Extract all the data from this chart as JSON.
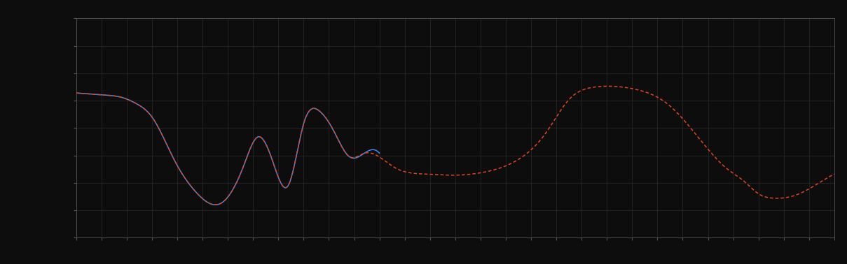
{
  "background_color": "#0d0d0d",
  "plot_background_color": "#0d0d0d",
  "grid_color": "#2a2a2a",
  "line1_color": "#4488ee",
  "line2_color": "#dd4422",
  "line_width": 1.1,
  "figsize": [
    12.09,
    3.78
  ],
  "dpi": 100,
  "xlim": [
    0,
    100
  ],
  "ylim": [
    0,
    10
  ],
  "n_grid_x": 30,
  "n_grid_y": 8,
  "blue_x": [
    0,
    2,
    4,
    6,
    8,
    10,
    13,
    16,
    19,
    22,
    24,
    26,
    28,
    30,
    32,
    34,
    36,
    38,
    40
  ],
  "blue_y": [
    6.6,
    6.55,
    6.5,
    6.4,
    6.1,
    5.5,
    3.5,
    2.0,
    1.55,
    3.2,
    4.6,
    3.4,
    2.4,
    5.2,
    5.8,
    4.85,
    3.7,
    3.85,
    3.85
  ],
  "red_x": [
    0,
    2,
    4,
    6,
    8,
    10,
    13,
    16,
    19,
    22,
    24,
    26,
    28,
    30,
    32,
    34,
    36,
    38,
    42,
    46,
    50,
    54,
    58,
    62,
    65,
    68,
    71,
    74,
    78,
    82,
    86,
    88,
    90,
    92,
    95,
    98,
    100
  ],
  "red_y": [
    6.6,
    6.55,
    6.5,
    6.4,
    6.1,
    5.5,
    3.5,
    2.0,
    1.55,
    3.2,
    4.6,
    3.4,
    2.4,
    5.2,
    5.8,
    4.85,
    3.7,
    3.85,
    3.2,
    2.9,
    2.85,
    3.0,
    3.5,
    4.8,
    6.3,
    6.85,
    6.9,
    6.75,
    6.1,
    4.6,
    3.1,
    2.6,
    2.0,
    1.8,
    1.95,
    2.5,
    2.9
  ],
  "spine_color": "#555555",
  "tick_color": "#555555"
}
